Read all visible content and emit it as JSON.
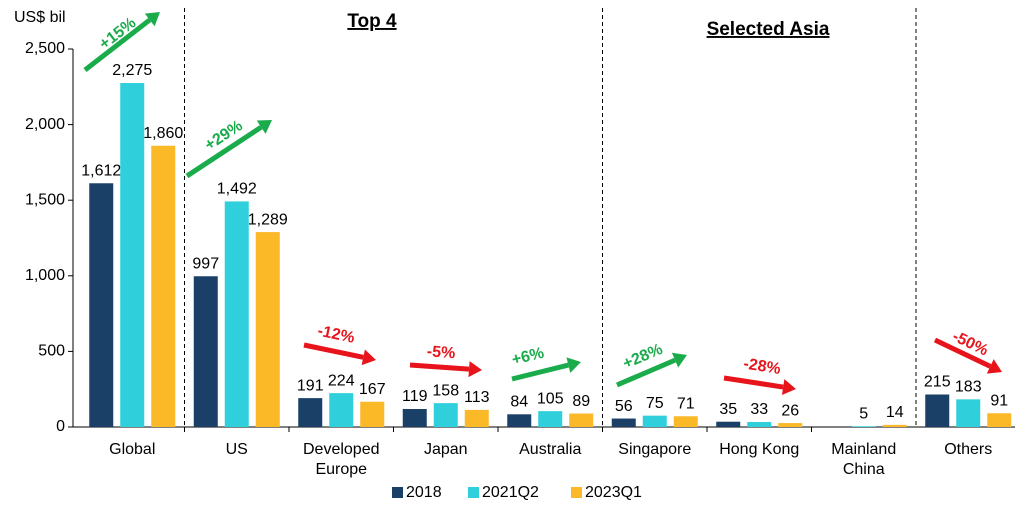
{
  "chart_data": {
    "type": "bar",
    "y_label": "US$ bil",
    "section_titles": [
      "Top 4",
      "Selected Asia"
    ],
    "categories": [
      "Global",
      "US",
      "Developed Europe",
      "Japan",
      "Australia",
      "Singapore",
      "Hong Kong",
      "Mainland China",
      "Others"
    ],
    "series": [
      {
        "name": "2018",
        "color": "#1b4068",
        "values": [
          1612,
          997,
          191,
          119,
          84,
          56,
          35,
          null,
          215
        ],
        "value_labels": [
          "1,612",
          "997",
          "191",
          "119",
          "84",
          "56",
          "35",
          null,
          "215"
        ]
      },
      {
        "name": "2021Q2",
        "color": "#2fd0dc",
        "values": [
          2275,
          1492,
          224,
          158,
          105,
          75,
          33,
          5,
          183
        ],
        "value_labels": [
          "2,275",
          "1,492",
          "224",
          "158",
          "105",
          "75",
          "33",
          "5",
          "183"
        ]
      },
      {
        "name": "2023Q1",
        "color": "#fbb827",
        "values": [
          1860,
          1289,
          167,
          113,
          89,
          71,
          26,
          14,
          91
        ],
        "value_labels": [
          "1,860",
          "1,289",
          "167",
          "113",
          "89",
          "71",
          "26",
          "14",
          "91"
        ]
      }
    ],
    "annotations": [
      {
        "text": "+15%",
        "color": "#1aab4b"
      },
      {
        "text": "+29%",
        "color": "#1aab4b"
      },
      {
        "text": "-12%",
        "color": "#e8141b"
      },
      {
        "text": "-5%",
        "color": "#e8141b"
      },
      {
        "text": "+6%",
        "color": "#1aab4b"
      },
      {
        "text": "+28%",
        "color": "#1aab4b"
      },
      {
        "text": "-28%",
        "color": "#e8141b"
      },
      {
        "text": "-50%",
        "color": "#e8141b"
      }
    ],
    "ylim": [
      0,
      2500
    ],
    "yticks": [
      0,
      500,
      {
        "value": 1000,
        "label": "1,000"
      },
      {
        "value": 1500,
        "label": "1,500"
      },
      {
        "value": 2000,
        "label": "2,000"
      },
      {
        "value": 2500,
        "label": "2,500"
      }
    ],
    "grid": false,
    "legend": "bottom"
  }
}
